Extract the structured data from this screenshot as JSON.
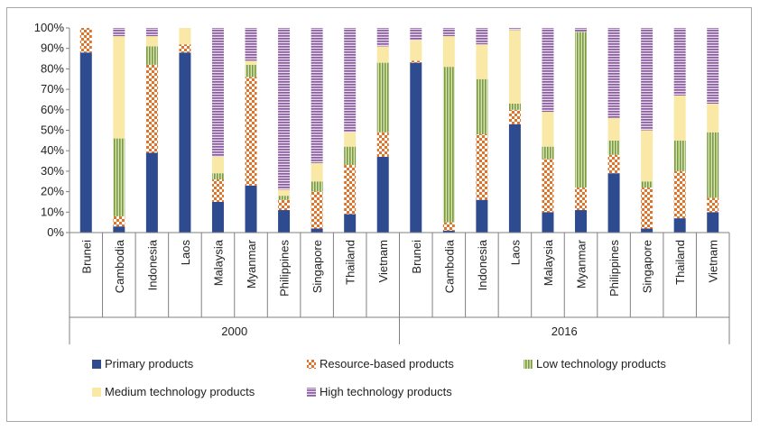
{
  "chart_data": {
    "type": "bar",
    "stacked": true,
    "percent": true,
    "groups": [
      {
        "label": "2000",
        "categories": [
          "Brunei",
          "Cambodia",
          "Indonesia",
          "Laos",
          "Malaysia",
          "Myanmar",
          "Philippines",
          "Singapore",
          "Thailand",
          "Vietnam"
        ]
      },
      {
        "label": "2016",
        "categories": [
          "Brunei",
          "Cambodia",
          "Indonesia",
          "Laos",
          "Malaysia",
          "Myanmar",
          "Philippines",
          "Singapore",
          "Thailand",
          "Vietnam"
        ]
      }
    ],
    "series": [
      {
        "name": "Primary products",
        "color": "#2e4b8f",
        "pattern": "solid",
        "values": [
          88,
          3,
          39,
          88,
          15,
          23,
          11,
          2,
          9,
          37,
          83,
          1,
          16,
          53,
          10,
          11,
          29,
          2,
          7,
          10
        ]
      },
      {
        "name": "Resource-based products",
        "color": "#e0722a",
        "pattern": "checker",
        "values": [
          12,
          5,
          43,
          4,
          11,
          53,
          5,
          18,
          24,
          12,
          1,
          4,
          32,
          7,
          26,
          11,
          9,
          20,
          23,
          7
        ]
      },
      {
        "name": "Low technology products",
        "color": "#7a9a3c",
        "pattern": "vstripes",
        "values": [
          0,
          38,
          9,
          0,
          3,
          6,
          2,
          5,
          9,
          34,
          0,
          76,
          27,
          3,
          6,
          76,
          7,
          3,
          15,
          32
        ]
      },
      {
        "name": "Medium technology products",
        "color": "#f9e8a6",
        "pattern": "solid",
        "values": [
          0,
          50,
          5,
          8,
          8,
          2,
          3,
          9,
          7,
          8,
          10,
          15,
          17,
          36,
          17,
          0,
          11,
          25,
          22,
          14
        ]
      },
      {
        "name": "High technology products",
        "color": "#8a5e9e",
        "pattern": "hstripes",
        "values": [
          0,
          4,
          4,
          0,
          63,
          16,
          79,
          66,
          51,
          9,
          6,
          4,
          8,
          1,
          41,
          2,
          44,
          50,
          33,
          37
        ]
      }
    ],
    "yticks": [
      "0%",
      "10%",
      "20%",
      "30%",
      "40%",
      "50%",
      "60%",
      "70%",
      "80%",
      "90%",
      "100%"
    ],
    "ylim": [
      0,
      100
    ],
    "legend_position": "bottom"
  }
}
